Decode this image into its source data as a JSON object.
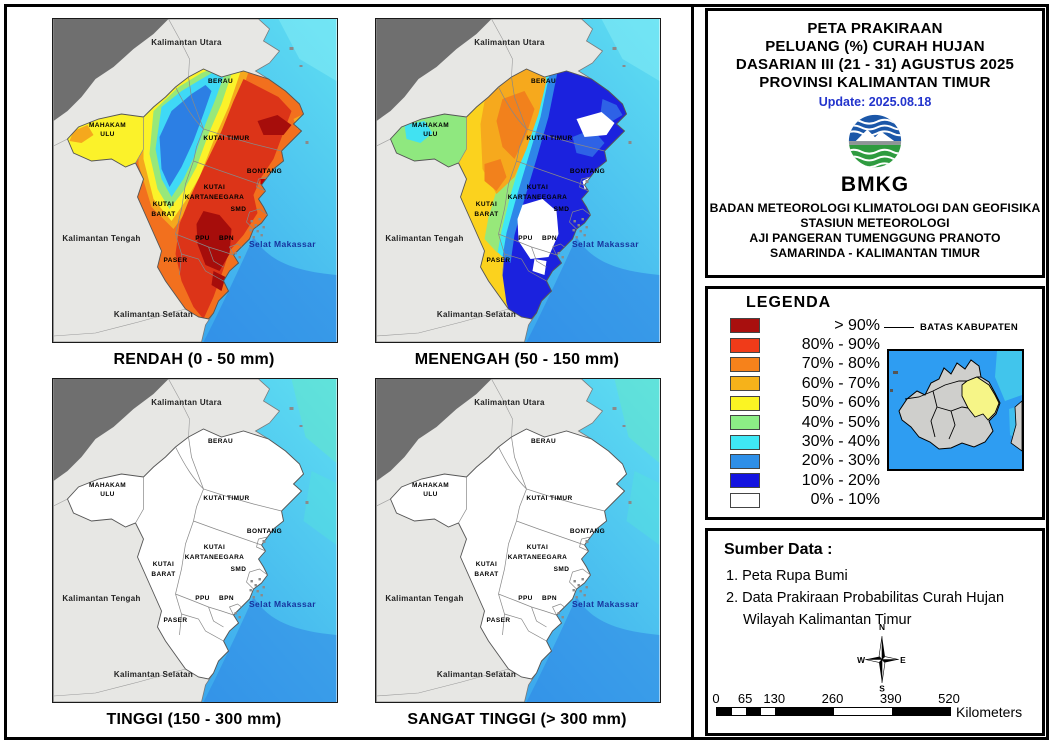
{
  "title_panel": {
    "lines": [
      "PETA PRAKIRAAN",
      "PELUANG (%) CURAH HUJAN",
      "DASARIAN III (21 - 31) AGUSTUS 2025",
      "PROVINSI KALIMANTAN TIMUR"
    ],
    "update": "Update: 2025.08.18",
    "logo_text": "BMKG",
    "agency_lines": [
      "BADAN METEOROLOGI KLIMATOLOGI DAN GEOFISIKA",
      "STASIUN METEOROLOGI",
      "AJI PANGERAN TUMENGGUNG PRANOTO",
      "SAMARINDA - KALIMANTAN TIMUR"
    ]
  },
  "legend": {
    "title": "LEGENDA",
    "boundary_label": "BATAS KABUPATEN",
    "entries": [
      {
        "label": "> 90%",
        "color": "#A80F0E"
      },
      {
        "label": "80% - 90%",
        "color": "#F03B19"
      },
      {
        "label": "70% - 80%",
        "color": "#F6821B"
      },
      {
        "label": "60% - 70%",
        "color": "#F6B21A"
      },
      {
        "label": "50% - 60%",
        "color": "#FBF423"
      },
      {
        "label": "40% - 50%",
        "color": "#8CEE85"
      },
      {
        "label": "30% - 40%",
        "color": "#3FE8F5"
      },
      {
        "label": "20% - 30%",
        "color": "#2E8FE8"
      },
      {
        "label": "10% - 20%",
        "color": "#1414E0"
      },
      {
        "label": "0% - 10%",
        "color": "#FFFFFF"
      }
    ]
  },
  "source_panel": {
    "heading": "Sumber Data :",
    "items": [
      "1. Peta Rupa Bumi",
      "2. Data Prakiraan Probabilitas Curah Hujan",
      "Wilayah Kalimantan Timur"
    ],
    "compass": {
      "n": "N",
      "e": "E",
      "s": "S",
      "w": "W"
    },
    "scalebar": {
      "ticks": [
        "0",
        "65",
        "130",
        "260",
        "390",
        "520"
      ],
      "unit": "Kilometers"
    }
  },
  "maps": {
    "panels": [
      {
        "caption": "RENDAH (0 - 50 mm)"
      },
      {
        "caption": "MENENGAH (50 - 150 mm)"
      },
      {
        "caption": "TINGGI (150 - 300 mm)"
      },
      {
        "caption": "SANGAT TINGGI (> 300 mm)"
      }
    ],
    "labels": {
      "kalimantan_utara": "Kalimantan Utara",
      "kalimantan_tengah": "Kalimantan Tengah",
      "kalimantan_selatan": "Kalimantan Selatan",
      "berau": "BERAU",
      "mahakam": "MAHAKAM",
      "ulu": "ULU",
      "kutai_timur": "KUTAI TIMUR",
      "bontang": "BONTANG",
      "kutai_a": "KUTAI",
      "kartanegara": "KARTANEEGARA",
      "smd": "SMD",
      "kutai_b": "KUTAI",
      "barat": "BARAT",
      "ppu": "PPU",
      "bpn": "BPN",
      "paser": "PASER",
      "selat_makassar": "Selat Makassar"
    },
    "colors": {
      "sea_top": "#5FDFF2",
      "sea_bottom": "#2E93EB",
      "land": "#E7E7E4",
      "land_outside_country": "#6F6F6F"
    }
  }
}
